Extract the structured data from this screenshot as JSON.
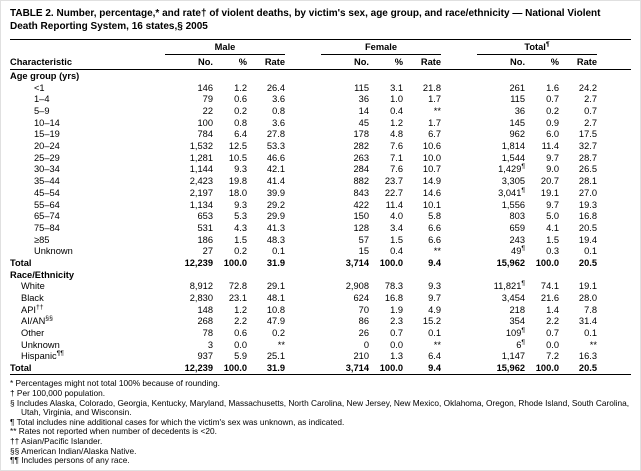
{
  "title": "TABLE 2. Number, percentage,* and rate† of violent deaths, by victim's sex, age group, and race/ethnicity — National Violent Death Reporting System, 16 states,§ 2005",
  "table": {
    "characteristic_header": "Characteristic",
    "groups": [
      {
        "label": "Male",
        "marker": ""
      },
      {
        "label": "Female",
        "marker": ""
      },
      {
        "label": "Total",
        "marker": "¶"
      }
    ],
    "subcolumns": [
      "No.",
      "%",
      "Rate"
    ],
    "sections": [
      {
        "label": "Age group (yrs)",
        "rows": [
          {
            "label": "<1",
            "values": [
              "146",
              "1.2",
              "26.4",
              "115",
              "3.1",
              "21.8",
              "261",
              "1.6",
              "24.2"
            ]
          },
          {
            "label": "1–4",
            "values": [
              "79",
              "0.6",
              "3.6",
              "36",
              "1.0",
              "1.7",
              "115",
              "0.7",
              "2.7"
            ]
          },
          {
            "label": "5–9",
            "values": [
              "22",
              "0.2",
              "0.8",
              "14",
              "0.4",
              "**",
              "36",
              "0.2",
              "0.7"
            ]
          },
          {
            "label": "10–14",
            "values": [
              "100",
              "0.8",
              "3.6",
              "45",
              "1.2",
              "1.7",
              "145",
              "0.9",
              "2.7"
            ]
          },
          {
            "label": "15–19",
            "values": [
              "784",
              "6.4",
              "27.8",
              "178",
              "4.8",
              "6.7",
              "962",
              "6.0",
              "17.5"
            ]
          },
          {
            "label": "20–24",
            "values": [
              "1,532",
              "12.5",
              "53.3",
              "282",
              "7.6",
              "10.6",
              "1,814",
              "11.4",
              "32.7"
            ]
          },
          {
            "label": "25–29",
            "values": [
              "1,281",
              "10.5",
              "46.6",
              "263",
              "7.1",
              "10.0",
              "1,544",
              "9.7",
              "28.7"
            ]
          },
          {
            "label": "30–34",
            "values": [
              "1,144",
              "9.3",
              "42.1",
              "284",
              "7.6",
              "10.7",
              "1,429¶",
              "9.0",
              "26.5"
            ]
          },
          {
            "label": "35–44",
            "values": [
              "2,423",
              "19.8",
              "41.4",
              "882",
              "23.7",
              "14.9",
              "3,305",
              "20.7",
              "28.1"
            ]
          },
          {
            "label": "45–54",
            "values": [
              "2,197",
              "18.0",
              "39.9",
              "843",
              "22.7",
              "14.6",
              "3,041¶",
              "19.1",
              "27.0"
            ]
          },
          {
            "label": "55–64",
            "values": [
              "1,134",
              "9.3",
              "29.2",
              "422",
              "11.4",
              "10.1",
              "1,556",
              "9.7",
              "19.3"
            ]
          },
          {
            "label": "65–74",
            "values": [
              "653",
              "5.3",
              "29.9",
              "150",
              "4.0",
              "5.8",
              "803",
              "5.0",
              "16.8"
            ]
          },
          {
            "label": "75–84",
            "values": [
              "531",
              "4.3",
              "41.3",
              "128",
              "3.4",
              "6.6",
              "659",
              "4.1",
              "20.5"
            ]
          },
          {
            "label": "≥85",
            "values": [
              "186",
              "1.5",
              "48.3",
              "57",
              "1.5",
              "6.6",
              "243",
              "1.5",
              "19.4"
            ]
          },
          {
            "label": "Unknown",
            "values": [
              "27",
              "0.2",
              "0.1",
              "15",
              "0.4",
              "**",
              "49¶",
              "0.3",
              "0.1"
            ]
          }
        ],
        "total": {
          "label": "Total",
          "values": [
            "12,239",
            "100.0",
            "31.9",
            "3,714",
            "100.0",
            "9.4",
            "15,962",
            "100.0",
            "20.5"
          ]
        }
      },
      {
        "label": "Race/Ethnicity",
        "rows": [
          {
            "label": "White",
            "values": [
              "8,912",
              "72.8",
              "29.1",
              "2,908",
              "78.3",
              "9.3",
              "11,821¶",
              "74.1",
              "19.1"
            ]
          },
          {
            "label": "Black",
            "values": [
              "2,830",
              "23.1",
              "48.1",
              "624",
              "16.8",
              "9.7",
              "3,454",
              "21.6",
              "28.0"
            ]
          },
          {
            "label": "API††",
            "values": [
              "148",
              "1.2",
              "10.8",
              "70",
              "1.9",
              "4.9",
              "218",
              "1.4",
              "7.8"
            ]
          },
          {
            "label": "AI/AN§§",
            "values": [
              "268",
              "2.2",
              "47.9",
              "86",
              "2.3",
              "15.2",
              "354",
              "2.2",
              "31.4"
            ]
          },
          {
            "label": "Other",
            "values": [
              "78",
              "0.6",
              "0.2",
              "26",
              "0.7",
              "0.1",
              "109¶",
              "0.7",
              "0.1"
            ]
          },
          {
            "label": "Unknown",
            "values": [
              "3",
              "0.0",
              "**",
              "0",
              "0.0",
              "**",
              "6¶",
              "0.0",
              "**"
            ]
          },
          {
            "label": "Hispanic¶¶",
            "values": [
              "937",
              "5.9",
              "25.1",
              "210",
              "1.3",
              "6.4",
              "1,147",
              "7.2",
              "16.3"
            ]
          }
        ],
        "total": {
          "label": "Total",
          "values": [
            "12,239",
            "100.0",
            "31.9",
            "3,714",
            "100.0",
            "9.4",
            "15,962",
            "100.0",
            "20.5"
          ]
        }
      }
    ]
  },
  "footnotes": [
    {
      "marker": "*",
      "text": "Percentages might not total 100% because of rounding."
    },
    {
      "marker": "†",
      "text": "Per 100,000 population."
    },
    {
      "marker": "§",
      "text": "Includes Alaska, Colorado, Georgia, Kentucky, Maryland, Massachusetts, North Carolina, New Jersey, New Mexico, Oklahoma, Oregon, Rhode Island, South Carolina, Utah, Virginia, and Wisconsin."
    },
    {
      "marker": "¶",
      "text": "Total includes nine additional cases for which the victim's sex was unknown, as indicated."
    },
    {
      "marker": "**",
      "text": "Rates not reported when number of decedents is <20."
    },
    {
      "marker": "††",
      "text": "Asian/Pacific Islander."
    },
    {
      "marker": "§§",
      "text": "American Indian/Alaska Native."
    },
    {
      "marker": "¶¶",
      "text": "Includes persons of any race."
    }
  ]
}
